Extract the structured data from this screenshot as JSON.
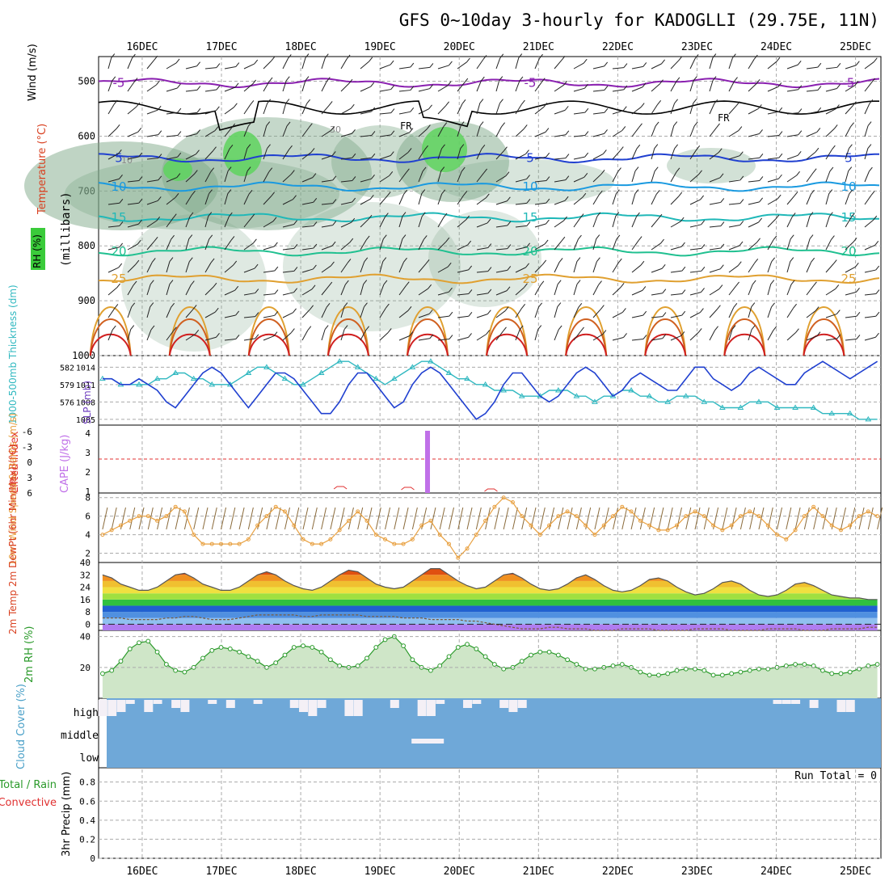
{
  "title": "GFS 0~10day 3-hourly for KADOGLLI (29.75E, 11N)",
  "dates": [
    "16DEC",
    "17DEC",
    "18DEC",
    "19DEC",
    "20DEC",
    "21DEC",
    "22DEC",
    "23DEC",
    "24DEC",
    "25DEC"
  ],
  "colors": {
    "rh_fill": "#b7d9b0",
    "temp_warm": "#d94020",
    "temp_cool": "#2050d0",
    "slp": "#2040d0",
    "thickness": "#30b8c0",
    "cape": "#c070e8",
    "lifted": "#e03030",
    "wind": "#e8a040",
    "rh2m": "#2a9a2a",
    "cloud": "#6fa8d8",
    "precip": "#2a9a2a"
  },
  "chart_data": [
    {
      "panel": "upper_air",
      "type": "contour",
      "ylabel": "(millibars)",
      "legend": [
        "Wind (m/s)",
        "Temperature (°C)",
        "RH (%)"
      ],
      "y_ticks": [
        500,
        600,
        700,
        800,
        900,
        1000
      ],
      "isotherms": [
        {
          "label": "-5",
          "mb": 503
        },
        {
          "label": "5",
          "mb": 640
        },
        {
          "label": "10",
          "mb": 692
        },
        {
          "label": "15",
          "mb": 748
        },
        {
          "label": "20",
          "mb": 810
        },
        {
          "label": "25",
          "mb": 860
        }
      ],
      "freezing_level_label": "FR",
      "rh_labels": [
        "10",
        "30"
      ]
    },
    {
      "panel": "thickness_slp",
      "type": "line",
      "ylabel_left": "1000-500mb Thickness (dm)",
      "ylabel_right": "SLP (mb)",
      "y_ticks_left": [
        "582",
        "579",
        "576"
      ],
      "y_ticks_right": [
        "1014",
        "1011",
        "1008",
        "1005"
      ],
      "slp": [
        1012,
        1012,
        1011,
        1011,
        1012,
        1011,
        1010,
        1008,
        1007,
        1009,
        1011,
        1013,
        1014,
        1013,
        1011,
        1009,
        1007,
        1009,
        1011,
        1013,
        1013,
        1012,
        1010,
        1008,
        1006,
        1006,
        1008,
        1011,
        1013,
        1013,
        1011,
        1009,
        1007,
        1008,
        1011,
        1013,
        1014,
        1013,
        1011,
        1009,
        1007,
        1005,
        1006,
        1008,
        1011,
        1013,
        1013,
        1011,
        1009,
        1008,
        1009,
        1011,
        1013,
        1014,
        1013,
        1011,
        1009,
        1010,
        1012,
        1013,
        1012,
        1011,
        1010,
        1010,
        1012,
        1014,
        1014,
        1012,
        1011,
        1010,
        1011,
        1013,
        1014,
        1013,
        1012,
        1011,
        1011,
        1013,
        1014,
        1015,
        1014,
        1013,
        1012,
        1013,
        1014,
        1015
      ],
      "thickness": [
        580,
        580,
        579,
        579,
        579,
        579,
        580,
        580,
        581,
        581,
        580,
        580,
        579,
        579,
        579,
        580,
        581,
        582,
        582,
        581,
        580,
        579,
        579,
        580,
        581,
        582,
        583,
        583,
        582,
        581,
        580,
        579,
        580,
        581,
        582,
        583,
        583,
        582,
        581,
        580,
        580,
        579,
        579,
        578,
        578,
        578,
        577,
        577,
        577,
        578,
        578,
        578,
        577,
        577,
        576,
        577,
        577,
        578,
        578,
        577,
        577,
        576,
        576,
        577,
        577,
        577,
        576,
        576,
        575,
        575,
        575,
        576,
        576,
        576,
        575,
        575,
        575,
        575,
        575,
        574,
        574,
        574,
        574,
        573,
        573,
        573
      ]
    },
    {
      "panel": "stability",
      "type": "bar",
      "ylabel_left": "Lifted Index",
      "ylabel_right": "CAPE (J/kg)",
      "y_ticks_left": [
        "-6",
        "-3",
        "0",
        "3",
        "6"
      ],
      "y_ticks_right": [
        "4",
        "3",
        "2",
        "1"
      ],
      "cape_spike_date": "19.6",
      "cape_spike_value": 4
    },
    {
      "panel": "wind10m",
      "type": "line",
      "ylabel": "10m Wind Speed & Barbs (m/s)",
      "y_ticks": [
        "8",
        "6",
        "4",
        "2"
      ],
      "speed": [
        4,
        4.5,
        5,
        5.5,
        6,
        6,
        5.5,
        6,
        7,
        6.5,
        4,
        3,
        3,
        3,
        3,
        3,
        3.5,
        5,
        6,
        7,
        6.5,
        5,
        3.5,
        3,
        3,
        3.5,
        4.5,
        5.5,
        6.5,
        5.5,
        4,
        3.5,
        3,
        3,
        3.5,
        5,
        5.5,
        4,
        3,
        1.5,
        2.5,
        4,
        5.5,
        7,
        8,
        7.5,
        6,
        5,
        4,
        5,
        6,
        6.5,
        6,
        5,
        4,
        5,
        6,
        7,
        6.5,
        5.5,
        5,
        4.5,
        4.5,
        5,
        6,
        6.5,
        6,
        5,
        4.5,
        5,
        6,
        6.5,
        6,
        5,
        4,
        3.5,
        4.5,
        6,
        7,
        6,
        5,
        4.5,
        5,
        6,
        6.5,
        6
      ]
    },
    {
      "panel": "temp2m",
      "type": "area",
      "ylabel": "2m Temp 2m DewPt (6hr Min/Max) (°C)",
      "y_ticks": [
        "40",
        "32",
        "24",
        "16",
        "8",
        "0"
      ],
      "temp": [
        32,
        30,
        26,
        24,
        22,
        22,
        24,
        28,
        32,
        33,
        30,
        26,
        24,
        22,
        22,
        24,
        28,
        32,
        34,
        32,
        28,
        25,
        23,
        22,
        24,
        28,
        32,
        35,
        34,
        30,
        26,
        24,
        23,
        24,
        28,
        32,
        36,
        36,
        32,
        28,
        25,
        23,
        24,
        28,
        32,
        33,
        30,
        26,
        23,
        22,
        23,
        26,
        30,
        32,
        29,
        25,
        22,
        21,
        22,
        25,
        29,
        30,
        28,
        24,
        21,
        19,
        20,
        23,
        27,
        28,
        26,
        22,
        19,
        18,
        19,
        22,
        26,
        27,
        25,
        22,
        19,
        18,
        17,
        17,
        16,
        16
      ],
      "dewpt": [
        4,
        4,
        4,
        3,
        3,
        3,
        3,
        4,
        4,
        5,
        5,
        4,
        3,
        3,
        3,
        4,
        5,
        6,
        6,
        6,
        6,
        6,
        5,
        5,
        6,
        6,
        6,
        6,
        6,
        5,
        5,
        5,
        5,
        4,
        4,
        4,
        3,
        3,
        3,
        3,
        2,
        2,
        1,
        0,
        -1,
        -2,
        -3,
        -3,
        -3,
        -2,
        -2,
        -3,
        -3,
        -3,
        -4,
        -4,
        -4,
        -3,
        -3,
        -3,
        -3,
        -4,
        -4,
        -4,
        -4,
        -3,
        -3,
        -3,
        -3,
        -4,
        -4,
        -4,
        -4,
        -3,
        -3,
        -3,
        -3,
        -4,
        -4,
        -4,
        -3,
        -3,
        -3,
        -3,
        -2,
        -2
      ]
    },
    {
      "panel": "rh2m",
      "type": "area",
      "ylabel": "2m RH (%)",
      "y_ticks": [
        "40",
        "20"
      ],
      "rh": [
        16,
        18,
        24,
        32,
        36,
        37,
        30,
        22,
        18,
        17,
        20,
        26,
        31,
        33,
        32,
        30,
        27,
        24,
        20,
        23,
        28,
        33,
        34,
        33,
        30,
        25,
        21,
        20,
        21,
        26,
        33,
        38,
        40,
        34,
        25,
        20,
        18,
        21,
        27,
        33,
        35,
        32,
        27,
        22,
        19,
        20,
        24,
        28,
        30,
        30,
        28,
        25,
        22,
        19,
        19,
        20,
        21,
        22,
        20,
        17,
        15,
        15,
        16,
        18,
        19,
        19,
        18,
        15,
        15,
        16,
        17,
        18,
        19,
        19,
        20,
        21,
        22,
        22,
        21,
        18,
        16,
        16,
        17,
        19,
        21,
        22
      ]
    },
    {
      "panel": "cloud",
      "type": "bar",
      "ylabel": "Cloud Cover (%)",
      "layer_labels": [
        "high",
        "middle",
        "low"
      ],
      "high": [
        20,
        20,
        15,
        5,
        0,
        15,
        5,
        0,
        10,
        15,
        0,
        0,
        5,
        0,
        10,
        0,
        0,
        5,
        0,
        0,
        0,
        10,
        15,
        20,
        10,
        0,
        0,
        20,
        20,
        0,
        0,
        0,
        10,
        0,
        0,
        20,
        20,
        5,
        0,
        0,
        10,
        5,
        0,
        0,
        10,
        15,
        10,
        0,
        0,
        0,
        0,
        0,
        0,
        0,
        0,
        0,
        0,
        0,
        0,
        0,
        0,
        0,
        0,
        0,
        0,
        0,
        0,
        0,
        0,
        0,
        0,
        0,
        0,
        0,
        5,
        5,
        5,
        0,
        10,
        0,
        0,
        15,
        15,
        0,
        0,
        0
      ],
      "middle_notch_date": "19.5"
    },
    {
      "panel": "precip",
      "type": "bar",
      "ylabel": "3hr Precip (mm)",
      "legend": [
        "Total / Rain",
        "Convective"
      ],
      "y_ticks": [
        "0.8",
        "0.6",
        "0.4",
        "0.2",
        "0"
      ],
      "run_total_label": "Run Total = 0",
      "values": []
    }
  ]
}
